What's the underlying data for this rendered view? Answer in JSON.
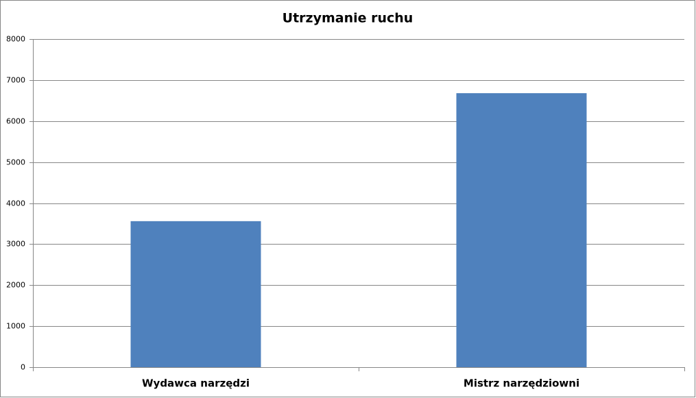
{
  "chart_data": {
    "type": "bar",
    "title": "Utrzymanie ruchu",
    "categories": [
      "Wydawca narzędzi",
      "Mistrz narzędziowni"
    ],
    "values": [
      3560,
      6680
    ],
    "color": "#4f81bd",
    "ylim": [
      0,
      8000
    ],
    "yticks": [
      0,
      1000,
      2000,
      3000,
      4000,
      5000,
      6000,
      7000,
      8000
    ],
    "grid": true
  }
}
